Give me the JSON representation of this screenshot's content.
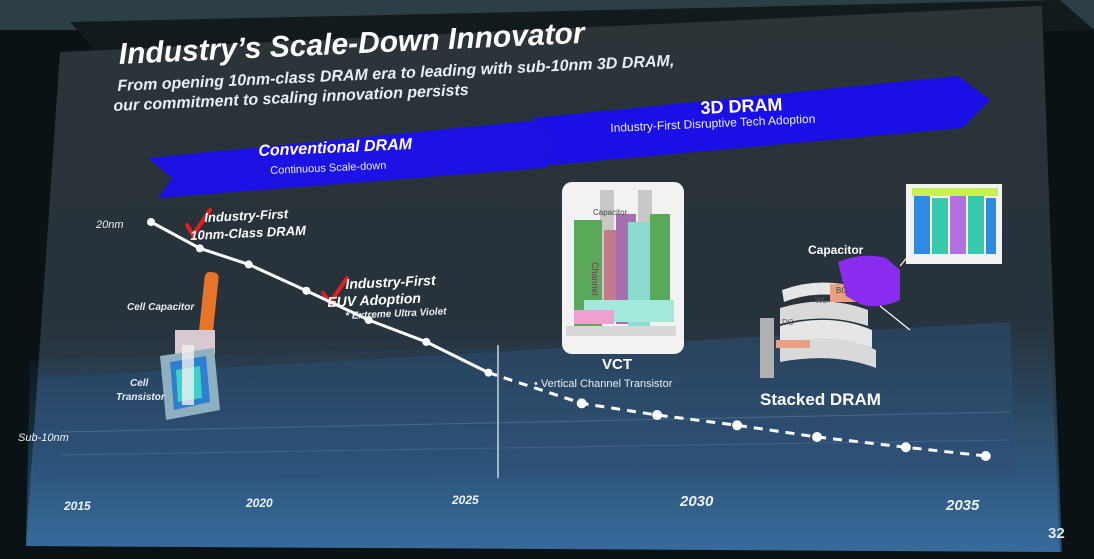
{
  "slide": {
    "title": "Industry’s Scale-Down Innovator",
    "subtitle_line1": "From opening 10nm-class DRAM era to leading with sub-10nm 3D DRAM,",
    "subtitle_line2": "our commitment to scaling innovation persists",
    "page_number": "32"
  },
  "bands": {
    "conventional_title": "Conventional DRAM",
    "conventional_sub": "Continuous Scale-down",
    "threed_title": "3D DRAM",
    "threed_sub": "Industry-First Disruptive Tech Adoption"
  },
  "annotations": {
    "first_10nm_line1": "Industry-First",
    "first_10nm_line2": "10nm-Class DRAM",
    "euv_line1": "Industry-First",
    "euv_line2": "EUV Adoption",
    "euv_note": "* Extreme Ultra Violet",
    "cell_capacitor": "Cell Capacitor",
    "cell_transistor_line1": "Cell",
    "cell_transistor_line2": "Transistor",
    "vct_title": "VCT",
    "vct_note": "• Vertical Channel Transistor",
    "stacked_title": "Stacked DRAM",
    "capacitor": "Capacitor",
    "wl": "WL",
    "bc": "BC",
    "dc": "DC",
    "channel_label": "Channel",
    "capacitor_small": "Capacitor"
  },
  "colors": {
    "arrow_blue": "#1a10e6",
    "check_red": "#e02020",
    "line_white": "#ffffff"
  },
  "chart_data": {
    "type": "line",
    "x_ticks": [
      "2015",
      "2020",
      "2025",
      "2030",
      "2035"
    ],
    "y_ticks": [
      "20nm",
      "Sub-10nm"
    ],
    "xlim": [
      2015,
      2035
    ],
    "series": [
      {
        "style": "solid",
        "points": [
          [
            2016.6,
            20
          ],
          [
            2017.7,
            18.2
          ],
          [
            2018.8,
            17.1
          ],
          [
            2020.1,
            15.3
          ],
          [
            2021.5,
            13.3
          ],
          [
            2022.8,
            11.8
          ],
          [
            2024.2,
            9.7
          ]
        ]
      },
      {
        "style": "dashed",
        "points": [
          [
            2024.2,
            9.7
          ],
          [
            2026.3,
            7.6
          ],
          [
            2028.0,
            6.8
          ],
          [
            2029.8,
            6.1
          ],
          [
            2031.6,
            5.3
          ],
          [
            2033.6,
            4.6
          ],
          [
            2035.4,
            4.0
          ]
        ]
      }
    ]
  }
}
